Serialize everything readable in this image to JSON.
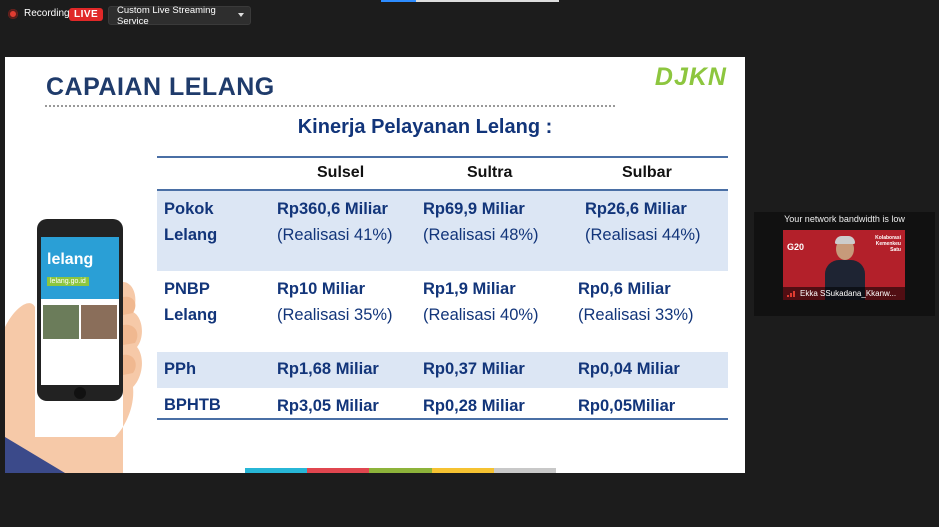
{
  "top": {
    "recording_label": "Recording",
    "live_badge": "LIVE",
    "stream_service": "Custom Live Streaming Service"
  },
  "slide": {
    "title": "CAPAIAN LELANG",
    "logo": "DJKN",
    "subtitle": "Kinerja Pelayanan Lelang :",
    "columns": [
      "Sulsel",
      "Sultra",
      "Sulbar"
    ],
    "rows": [
      {
        "label1": "Pokok",
        "label2": "Lelang",
        "values": [
          "Rp360,6 Miliar",
          "Rp69,9  Miliar",
          "Rp26,6 Miliar"
        ],
        "notes": [
          "(Realisasi 41%)",
          "(Realisasi 48%)",
          "(Realisasi 44%)"
        ]
      },
      {
        "label1": "PNBP",
        "label2": "Lelang",
        "values": [
          "Rp10 Miliar",
          "Rp1,9 Miliar",
          "Rp0,6 Miliar"
        ],
        "notes": [
          "(Realisasi 35%)",
          "(Realisasi 40%)",
          "(Realisasi 33%)"
        ]
      },
      {
        "label1": "PPh",
        "values": [
          "Rp1,68 Miliar",
          "Rp0,37 Miliar",
          "Rp0,04 Miliar"
        ]
      },
      {
        "label1": "BPHTB",
        "values": [
          "Rp3,05 Miliar",
          "Rp0,28 Miliar",
          "Rp0,05Miliar"
        ]
      }
    ],
    "phone_logo": "lelang",
    "phone_url": "lelang.go.id",
    "color_bar": [
      "#27b6d6",
      "#e0464f",
      "#8db33a",
      "#f5c231",
      "#c8c8c8"
    ]
  },
  "video": {
    "bandwidth_notice": "Your network bandwidth is low",
    "participant_name": "Ekka SSukadana_Kkanw...",
    "overlay_g20": "G20",
    "overlay_kolaborasi": "Kolaborasi Kemenkeu Satu"
  }
}
